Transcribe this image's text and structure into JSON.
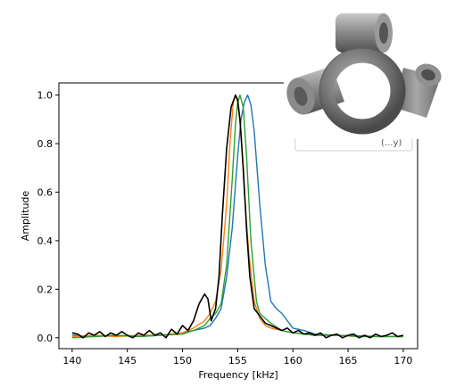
{
  "chart_data": {
    "type": "line",
    "xlabel": "Frequency [kHz]",
    "ylabel": "Amplitude",
    "xlim": [
      138.8,
      171.3
    ],
    "ylim": [
      -0.045,
      1.05
    ],
    "xticks": [
      140,
      145,
      150,
      155,
      160,
      165,
      170
    ],
    "yticks": [
      0.0,
      0.2,
      0.4,
      0.6,
      0.8,
      1.0
    ],
    "xtick_labels": [
      "140",
      "145",
      "150",
      "155",
      "160",
      "165",
      "170"
    ],
    "ytick_labels": [
      "0.0",
      "0.2",
      "0.4",
      "0.6",
      "0.8",
      "1.0"
    ],
    "grid": false,
    "legend": "top-right (partially hidden behind inset image)",
    "series": [
      {
        "color": "#1f77b4",
        "x": [
          140,
          142,
          144,
          146,
          148,
          150,
          151,
          152,
          152.5,
          153,
          153.5,
          154,
          154.5,
          155,
          155.3,
          155.6,
          155.9,
          156.2,
          156.5,
          157,
          157.5,
          158,
          158.5,
          159,
          160,
          161,
          162,
          164,
          166,
          168,
          170
        ],
        "y": [
          0.01,
          0.005,
          0.01,
          0.005,
          0.01,
          0.02,
          0.03,
          0.04,
          0.05,
          0.08,
          0.12,
          0.25,
          0.45,
          0.75,
          0.9,
          0.97,
          1.0,
          0.96,
          0.85,
          0.55,
          0.3,
          0.15,
          0.12,
          0.1,
          0.04,
          0.03,
          0.015,
          0.01,
          0.008,
          0.005,
          0.005
        ]
      },
      {
        "color": "#ff7f0e",
        "x": [
          140,
          142,
          144,
          146,
          148,
          150,
          151,
          152,
          152.5,
          153,
          153.5,
          154,
          154.3,
          154.6,
          154.8,
          155,
          155.3,
          155.6,
          156,
          156.5,
          157,
          157.5,
          158,
          159,
          160,
          162,
          164,
          166,
          168,
          170
        ],
        "y": [
          0.005,
          0.01,
          0.005,
          0.01,
          0.01,
          0.02,
          0.04,
          0.07,
          0.1,
          0.15,
          0.28,
          0.55,
          0.8,
          0.97,
          1.0,
          0.97,
          0.85,
          0.6,
          0.35,
          0.15,
          0.08,
          0.05,
          0.04,
          0.03,
          0.02,
          0.01,
          0.01,
          0.005,
          0.005,
          0.005
        ]
      },
      {
        "color": "#2ca02c",
        "x": [
          140,
          142,
          144,
          146,
          148,
          150,
          151,
          152,
          152.5,
          153,
          153.5,
          154,
          154.5,
          154.8,
          155,
          155.2,
          155.5,
          155.8,
          156.2,
          156.7,
          157,
          157.5,
          158,
          159,
          160,
          162,
          164,
          166,
          168,
          170
        ],
        "y": [
          0.0,
          0.005,
          0.01,
          0.005,
          0.01,
          0.015,
          0.03,
          0.05,
          0.08,
          0.1,
          0.14,
          0.3,
          0.65,
          0.88,
          0.97,
          1.0,
          0.95,
          0.75,
          0.4,
          0.15,
          0.1,
          0.08,
          0.06,
          0.03,
          0.02,
          0.01,
          0.01,
          0.005,
          0.005,
          0.005
        ]
      },
      {
        "color": "#000000",
        "x": [
          140,
          140.5,
          141,
          141.5,
          142,
          142.5,
          143,
          143.5,
          144,
          144.5,
          145,
          145.5,
          146,
          146.5,
          147,
          147.5,
          148,
          148.5,
          149,
          149.5,
          150,
          150.5,
          151,
          151.5,
          152,
          152.3,
          152.6,
          153,
          153.3,
          153.6,
          154,
          154.4,
          154.8,
          155,
          155.2,
          155.5,
          155.8,
          156.1,
          156.5,
          157,
          157.5,
          158,
          158.5,
          159,
          159.5,
          160,
          160.5,
          161,
          161.5,
          162,
          162.5,
          163,
          163.5,
          164,
          164.5,
          165,
          165.5,
          166,
          166.5,
          167,
          167.5,
          168,
          168.5,
          169,
          169.5,
          170
        ],
        "y": [
          0.02,
          0.015,
          0.0,
          0.02,
          0.01,
          0.025,
          0.005,
          0.02,
          0.01,
          0.025,
          0.01,
          0.0,
          0.02,
          0.01,
          0.03,
          0.01,
          0.02,
          0.0,
          0.035,
          0.015,
          0.05,
          0.03,
          0.07,
          0.14,
          0.18,
          0.16,
          0.07,
          0.12,
          0.25,
          0.5,
          0.78,
          0.95,
          1.0,
          0.98,
          0.9,
          0.7,
          0.45,
          0.25,
          0.12,
          0.09,
          0.06,
          0.05,
          0.04,
          0.03,
          0.04,
          0.02,
          0.03,
          0.015,
          0.02,
          0.01,
          0.02,
          0.0,
          0.01,
          0.015,
          0.0,
          0.01,
          0.015,
          0.0,
          0.01,
          0.0,
          0.015,
          0.005,
          0.01,
          0.02,
          0.005,
          0.01
        ]
      }
    ]
  },
  "inset": {
    "legend_fragment": "(...y)"
  }
}
